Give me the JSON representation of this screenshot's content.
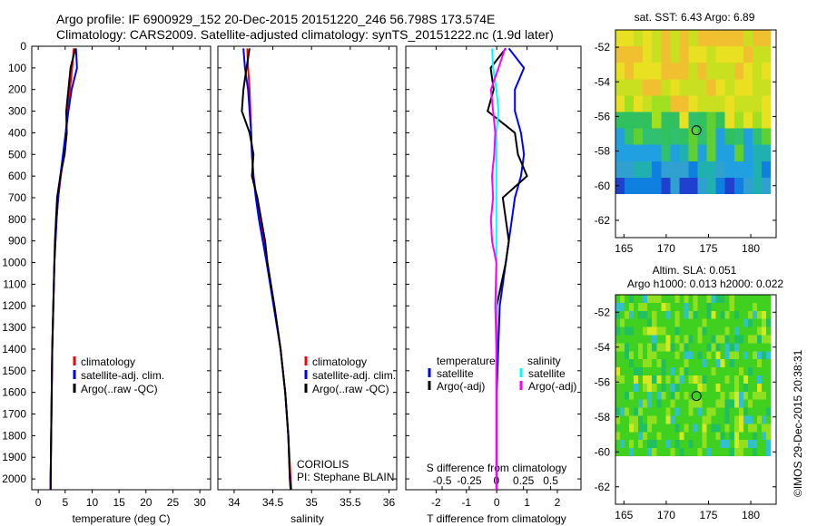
{
  "title_line1": "Argo profile: IF 6900929_152 20-Dec-2015 20151220_246 56.798S 173.574E",
  "title_line2": "Climatology: CARS2009. Satellite-adjusted climatology: synTS_20151222.nc (1.9d later)",
  "credit": "©IMOS 29-Dec-2015 20:38:31",
  "colors": {
    "climatology": "#ff0000",
    "satellite": "#0000ff",
    "argo": "#000000",
    "sal_satellite": "#00ffff",
    "sal_argo": "#ff00ff"
  },
  "chart_data": [
    {
      "type": "line",
      "xlabel": "temperature (deg C)",
      "ylabel": "",
      "ylim": [
        0,
        2050
      ],
      "xlim": [
        -1.2,
        32
      ],
      "xticks": [
        0,
        5,
        10,
        15,
        20,
        25,
        30
      ],
      "yticks": [
        0,
        100,
        200,
        300,
        400,
        500,
        600,
        700,
        800,
        900,
        1000,
        1100,
        1200,
        1300,
        1400,
        1500,
        1600,
        1700,
        1800,
        1900,
        2000
      ],
      "legend": [
        "climatology",
        "satellite-adj. clim.",
        "Argo(..raw -QC)"
      ],
      "depth": [
        10,
        100,
        200,
        300,
        400,
        500,
        600,
        700,
        800,
        900,
        1000,
        1200,
        1400,
        1600,
        1800,
        2000,
        2050
      ],
      "series": [
        {
          "name": "climatology",
          "values": [
            6.6,
            6.3,
            5.9,
            5.5,
            5.1,
            4.7,
            4.2,
            3.7,
            3.4,
            3.2,
            3.0,
            2.8,
            2.6,
            2.5,
            2.4,
            2.3,
            2.3
          ]
        },
        {
          "name": "satellite-adj. clim.",
          "values": [
            7.0,
            7.2,
            6.2,
            5.6,
            5.1,
            4.6,
            4.1,
            3.7,
            3.4,
            3.2,
            3.0,
            2.8,
            2.6,
            2.5,
            2.4,
            2.3,
            2.3
          ]
        },
        {
          "name": "Argo(..raw -QC)",
          "values": [
            6.9,
            6.0,
            5.6,
            5.2,
            5.3,
            4.9,
            4.1,
            3.5,
            3.3,
            3.1,
            3.0,
            2.8,
            2.6,
            2.5,
            2.4,
            2.3,
            2.3
          ]
        }
      ]
    },
    {
      "type": "line",
      "xlabel": "salinity",
      "ylim": [
        0,
        2050
      ],
      "xlim": [
        33.79,
        36.1
      ],
      "xticks": [
        34,
        34.5,
        35,
        35.5,
        36
      ],
      "legend": [
        "climatology",
        "satellite-adj. clim.",
        "Argo(..raw -QC)"
      ],
      "annotation": [
        "CORIOLIS",
        "PI: Stephane BLAIN"
      ],
      "depth": [
        10,
        100,
        200,
        300,
        400,
        500,
        600,
        700,
        800,
        900,
        1000,
        1200,
        1400,
        1600,
        1800,
        2000,
        2050
      ],
      "series": [
        {
          "name": "climatology",
          "values": [
            34.17,
            34.18,
            34.2,
            34.21,
            34.22,
            34.23,
            34.25,
            34.29,
            34.34,
            34.38,
            34.43,
            34.52,
            34.6,
            34.66,
            34.7,
            34.73,
            34.74
          ]
        },
        {
          "name": "satellite-adj. clim.",
          "values": [
            34.12,
            34.14,
            34.18,
            34.2,
            34.22,
            34.23,
            34.25,
            34.28,
            34.32,
            34.37,
            34.42,
            34.51,
            34.6,
            34.66,
            34.7,
            34.72,
            34.73
          ]
        },
        {
          "name": "Argo(..raw -QC)",
          "values": [
            34.2,
            34.16,
            34.12,
            34.1,
            34.2,
            34.25,
            34.23,
            34.3,
            34.35,
            34.4,
            34.43,
            34.52,
            34.6,
            34.66,
            34.7,
            34.72,
            34.73
          ]
        }
      ]
    },
    {
      "type": "line",
      "xlabel": "T difference from climatology",
      "x2label": "S difference from climatology",
      "ylim": [
        0,
        2050
      ],
      "xlim": [
        -3,
        2.78
      ],
      "x2lim": [
        -0.835,
        0.78
      ],
      "xticks": [
        -2,
        -1,
        0,
        1,
        2
      ],
      "x2ticks": [
        -0.5,
        -0.25,
        0,
        0.25,
        0.5
      ],
      "x2ticklabels": [
        "-0.5",
        "-0.25",
        "0",
        "0.25",
        "0.5"
      ],
      "legend_temperature": {
        "heading": "temperature",
        "items": [
          "satellite",
          "Argo(-adj)"
        ]
      },
      "legend_salinity": {
        "heading": "salinity",
        "items": [
          "satellite",
          "Argo(-adj)"
        ]
      },
      "depth": [
        10,
        100,
        200,
        300,
        400,
        500,
        600,
        700,
        800,
        900,
        1000,
        1200,
        1400,
        1600,
        1800,
        2000,
        2050
      ],
      "series": [
        {
          "name": "temperature satellite",
          "values": [
            0.4,
            0.9,
            0.6,
            0.6,
            0.8,
            0.9,
            0.8,
            0.6,
            0.5,
            0.4,
            0.3,
            0.1,
            0.05,
            0.0,
            0.0,
            0.0,
            0.0
          ]
        },
        {
          "name": "temperature Argo(-adj)",
          "values": [
            0.3,
            -0.2,
            -0.1,
            -0.3,
            0.6,
            0.7,
            1.0,
            0.2,
            0.3,
            0.4,
            0.3,
            0.0,
            0.0,
            0.0,
            0.0,
            0.0,
            0.0
          ]
        },
        {
          "name": "salinity satellite",
          "values": [
            -0.04,
            -0.03,
            0.0,
            0.02,
            0.0,
            0.0,
            0.0,
            0.0,
            0.0,
            0.0,
            0.0,
            0.0,
            0.0,
            0.0,
            0.0,
            0.0,
            0.0
          ]
        },
        {
          "name": "salinity Argo(-adj)",
          "values": [
            0.08,
            0.02,
            -0.05,
            -0.03,
            -0.01,
            -0.02,
            -0.04,
            -0.03,
            -0.05,
            -0.04,
            0.0,
            -0.01,
            0.0,
            0.0,
            0.0,
            0.0,
            0.0
          ]
        }
      ]
    },
    {
      "type": "heatmap",
      "title": "sat. SST: 6.43 Argo: 6.89",
      "xticks": [
        165,
        170,
        175,
        180
      ],
      "yticks": [
        -52,
        -54,
        -56,
        -58,
        -60,
        -62
      ],
      "xlim": [
        164,
        183
      ],
      "ylim": [
        -63,
        -51
      ],
      "marker": {
        "lon": 173.574,
        "lat": -56.798
      }
    },
    {
      "type": "heatmap",
      "title": "Altim. SLA: 0.051",
      "subtitle": "Argo h1000: 0.013 h2000: 0.022",
      "xticks": [
        165,
        170,
        175,
        180
      ],
      "yticks": [
        -52,
        -54,
        -56,
        -58,
        -60,
        -62
      ],
      "xlim": [
        164,
        183
      ],
      "ylim": [
        -63,
        -51
      ],
      "marker": {
        "lon": 173.574,
        "lat": -56.798
      }
    }
  ]
}
